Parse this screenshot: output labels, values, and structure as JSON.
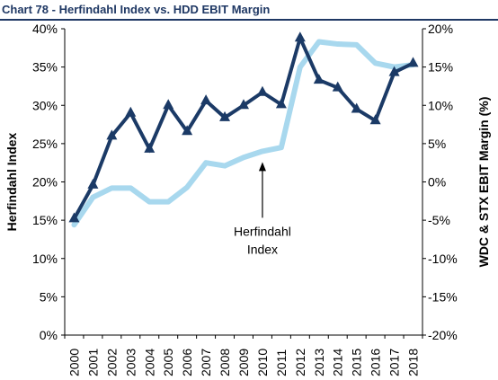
{
  "header": {
    "title": "Chart 78 - Herfindahl Index vs. HDD EBIT Margin"
  },
  "colors": {
    "title": "#1f3864",
    "herfindahl": "#a8d8ee",
    "margin": "#1b3a66",
    "axis": "#000000"
  },
  "chart_data": {
    "type": "line",
    "title": "Chart 78 - Herfindahl Index vs. HDD EBIT Margin",
    "x": [
      "2000",
      "2001",
      "2002",
      "2003",
      "2004",
      "2005",
      "2006",
      "2007",
      "2008",
      "2009",
      "2010",
      "2011",
      "2012",
      "2013",
      "2014",
      "2015",
      "2016",
      "2017",
      "2018"
    ],
    "y_left": {
      "label": "Herfindahl Index",
      "range": [
        0,
        40
      ],
      "ticks": [
        "0%",
        "5%",
        "10%",
        "15%",
        "20%",
        "25%",
        "30%",
        "35%",
        "40%"
      ]
    },
    "y_right": {
      "label": "WDC & STX EBIT Margin (%)",
      "range": [
        -20,
        20
      ],
      "ticks": [
        "-20%",
        "-15%",
        "-10%",
        "-5%",
        "0%",
        "5%",
        "10%",
        "15%",
        "20%"
      ]
    },
    "grid": false,
    "series": [
      {
        "axis": "left",
        "color": "#a8d8ee",
        "values": [
          14.4,
          18.0,
          19.2,
          19.2,
          17.4,
          17.4,
          19.3,
          22.5,
          22.1,
          23.2,
          24.0,
          24.5,
          35.0,
          38.3,
          38.0,
          37.9,
          35.5,
          35.0,
          35.3
        ]
      },
      {
        "axis": "right",
        "color": "#1b3a66",
        "values": [
          -4.8,
          -0.4,
          6.0,
          9.0,
          4.3,
          10.0,
          6.6,
          10.6,
          8.4,
          10.0,
          11.7,
          10.1,
          18.8,
          13.3,
          12.3,
          9.5,
          8.0,
          14.3,
          15.5
        ]
      }
    ],
    "annotations": [
      {
        "text_line1": "Herfindahl",
        "text_line2": "Index",
        "points_to": "2010"
      }
    ]
  }
}
